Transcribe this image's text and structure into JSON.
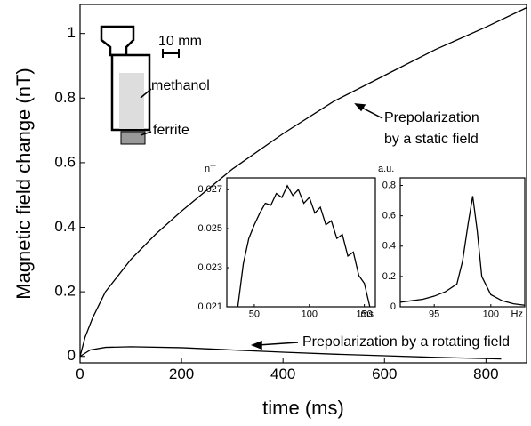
{
  "chart_data": [
    {
      "type": "line",
      "x_label": "time (ms)",
      "y_label": "Magnetic field change (nT)",
      "xlim": [
        0,
        880
      ],
      "ylim": [
        -0.02,
        1.09
      ],
      "xticks": [
        0,
        200,
        400,
        600,
        800
      ],
      "yticks": [
        0,
        0.2,
        0.4,
        0.6,
        0.8,
        1
      ],
      "annotations": [
        "10 mm",
        "methanol",
        "ferrite",
        "Prepolarization",
        "by a static field",
        "Prepolarization by a rotating field"
      ],
      "series": [
        {
          "color": "#000000",
          "x": [
            0,
            10,
            25,
            50,
            100,
            150,
            200,
            300,
            400,
            500,
            600,
            700,
            800,
            880
          ],
          "values": [
            0,
            0.06,
            0.12,
            0.2,
            0.3,
            0.38,
            0.45,
            0.58,
            0.69,
            0.79,
            0.87,
            0.95,
            1.02,
            1.08
          ]
        },
        {
          "color": "#000000",
          "x": [
            0,
            20,
            50,
            100,
            200,
            300,
            400,
            500,
            600,
            700,
            830
          ],
          "values": [
            0,
            0.02,
            0.028,
            0.03,
            0.027,
            0.02,
            0.013,
            0.007,
            0.002,
            -0.003,
            -0.008
          ]
        }
      ]
    },
    {
      "type": "line",
      "x_unit_label": "ms",
      "y_unit_label": "nT",
      "xlim": [
        25,
        160
      ],
      "ylim": [
        0.021,
        0.0276
      ],
      "xticks": [
        50,
        100,
        150
      ],
      "yticks": [
        0.021,
        0.023,
        0.025,
        0.027
      ],
      "series": [
        {
          "color": "#000000",
          "x": [
            35,
            40,
            45,
            50,
            55,
            60,
            65,
            70,
            75,
            80,
            85,
            90,
            95,
            100,
            105,
            110,
            115,
            120,
            125,
            130,
            135,
            140,
            145,
            150,
            155
          ],
          "values": [
            0.021,
            0.0232,
            0.0245,
            0.0252,
            0.0258,
            0.0263,
            0.0262,
            0.0268,
            0.0266,
            0.0272,
            0.0267,
            0.027,
            0.0263,
            0.0266,
            0.0258,
            0.0261,
            0.0252,
            0.0254,
            0.0245,
            0.0247,
            0.0236,
            0.0238,
            0.0226,
            0.0222,
            0.021
          ]
        }
      ]
    },
    {
      "type": "line",
      "x_unit_label": "Hz",
      "y_unit_label": "a.u.",
      "xlim": [
        92,
        103
      ],
      "ylim": [
        0,
        0.85
      ],
      "xticks": [
        95,
        100
      ],
      "yticks": [
        0,
        0.2,
        0.4,
        0.6,
        0.8
      ],
      "series": [
        {
          "color": "#000000",
          "x": [
            92,
            93,
            94,
            95,
            96,
            97,
            97.5,
            98,
            98.4,
            98.8,
            99.2,
            100,
            101,
            102,
            103
          ],
          "values": [
            0.03,
            0.04,
            0.05,
            0.07,
            0.1,
            0.15,
            0.3,
            0.55,
            0.73,
            0.5,
            0.2,
            0.08,
            0.04,
            0.02,
            0.01
          ]
        }
      ]
    }
  ]
}
